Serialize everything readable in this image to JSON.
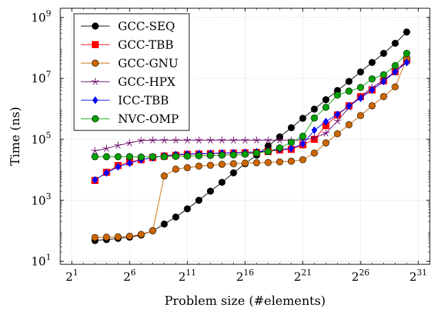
{
  "chart_data": {
    "type": "line",
    "x_scale": "log2",
    "y_scale": "log10",
    "xlabel": "Problem size (#elements)",
    "ylabel": "Time (ns)",
    "xlim_exponent": [
      0,
      32
    ],
    "ylim_exponent": [
      0.9,
      9.3
    ],
    "x_ticks": [
      {
        "base": "2",
        "exp": "1",
        "value_exp": 1
      },
      {
        "base": "2",
        "exp": "6",
        "value_exp": 6
      },
      {
        "base": "2",
        "exp": "11",
        "value_exp": 11
      },
      {
        "base": "2",
        "exp": "16",
        "value_exp": 16
      },
      {
        "base": "2",
        "exp": "21",
        "value_exp": 21
      },
      {
        "base": "2",
        "exp": "26",
        "value_exp": 26
      },
      {
        "base": "2",
        "exp": "31",
        "value_exp": 31
      }
    ],
    "y_ticks": [
      {
        "base": "10",
        "exp": "1",
        "value_exp": 1
      },
      {
        "base": "10",
        "exp": "3",
        "value_exp": 3
      },
      {
        "base": "10",
        "exp": "5",
        "value_exp": 5
      },
      {
        "base": "10",
        "exp": "7",
        "value_exp": 7
      },
      {
        "base": "10",
        "exp": "9",
        "value_exp": 9
      }
    ],
    "grid": true,
    "legend_position": "top-left",
    "x_exponents": [
      3,
      4,
      5,
      6,
      7,
      8,
      9,
      10,
      11,
      12,
      13,
      14,
      15,
      16,
      17,
      18,
      19,
      20,
      21,
      22,
      23,
      24,
      25,
      26,
      27,
      28,
      29,
      30
    ],
    "series": [
      {
        "name": "GCC-SEQ",
        "color": "#000000",
        "marker": "circle",
        "y_exponents": [
          1.68,
          1.71,
          1.75,
          1.79,
          1.86,
          2.0,
          2.22,
          2.45,
          2.72,
          3.0,
          3.3,
          3.59,
          3.9,
          4.2,
          4.48,
          4.78,
          5.08,
          5.38,
          5.69,
          5.99,
          6.3,
          6.6,
          6.9,
          7.21,
          7.52,
          7.82,
          8.15,
          8.52
        ]
      },
      {
        "name": "GCC-TBB",
        "color": "#ff0000",
        "marker": "square",
        "y_exponents": [
          3.65,
          3.92,
          4.14,
          4.26,
          4.33,
          4.4,
          4.45,
          4.48,
          4.51,
          4.52,
          4.53,
          4.54,
          4.55,
          4.56,
          4.57,
          4.6,
          4.65,
          4.67,
          4.82,
          5.0,
          5.45,
          5.8,
          6.1,
          6.4,
          6.62,
          6.92,
          7.22,
          7.6
        ]
      },
      {
        "name": "GCC-GNU",
        "color": "#cc6600",
        "marker": "circle",
        "y_exponents": [
          1.78,
          1.79,
          1.8,
          1.82,
          1.88,
          2.0,
          3.8,
          4.02,
          4.07,
          4.12,
          4.15,
          4.18,
          4.2,
          4.22,
          4.23,
          4.24,
          4.26,
          4.28,
          4.33,
          4.55,
          4.88,
          5.18,
          5.48,
          5.78,
          6.1,
          6.4,
          6.72,
          7.65
        ]
      },
      {
        "name": "GCC-HPX",
        "color": "#660066",
        "marker": "star",
        "y_exponents": [
          4.62,
          4.7,
          4.8,
          4.88,
          4.96,
          4.97,
          4.97,
          4.97,
          4.97,
          4.97,
          4.97,
          4.97,
          4.97,
          4.97,
          4.97,
          4.97,
          4.97,
          4.97,
          4.97,
          5.05,
          5.2,
          5.6,
          6.05,
          6.4,
          6.7,
          6.95,
          7.22,
          7.55
        ]
      },
      {
        "name": "ICC-TBB",
        "color": "#0000ff",
        "marker": "diamond",
        "y_exponents": [
          3.67,
          3.9,
          4.1,
          4.22,
          4.33,
          4.4,
          4.46,
          4.5,
          4.52,
          4.53,
          4.54,
          4.55,
          4.56,
          4.57,
          4.59,
          4.62,
          4.67,
          4.7,
          4.85,
          5.3,
          5.58,
          5.82,
          6.1,
          6.35,
          6.62,
          6.9,
          7.22,
          7.52
        ]
      },
      {
        "name": "NVC-OMP",
        "color": "#00a000",
        "marker": "circle",
        "y_exponents": [
          4.43,
          4.43,
          4.43,
          4.43,
          4.42,
          4.43,
          4.43,
          4.44,
          4.45,
          4.46,
          4.47,
          4.48,
          4.49,
          4.51,
          4.55,
          4.6,
          4.72,
          4.9,
          5.1,
          5.7,
          6.05,
          6.45,
          6.58,
          6.7,
          6.98,
          7.12,
          7.42,
          7.82
        ]
      }
    ]
  }
}
